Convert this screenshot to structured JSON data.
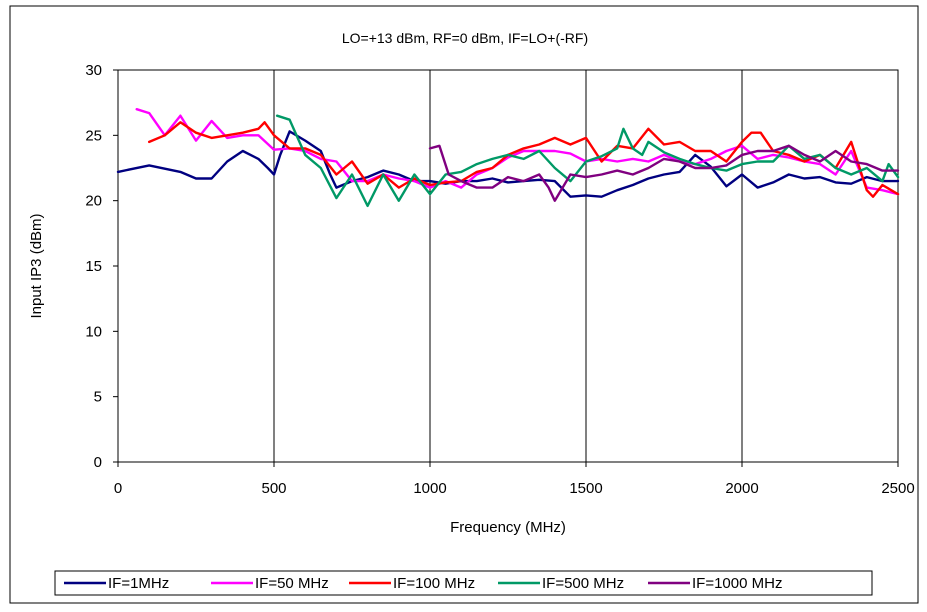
{
  "chart_data": {
    "type": "line",
    "title": "LO=+13 dBm, RF=0 dBm, IF=LO+(-RF)",
    "xlabel": "Frequency (MHz)",
    "ylabel": "Input IP3 (dBm)",
    "xlim": [
      0,
      2500
    ],
    "ylim": [
      0,
      30
    ],
    "xticks": [
      0,
      500,
      1000,
      1500,
      2000,
      2500
    ],
    "yticks": [
      0,
      5,
      10,
      15,
      20,
      25,
      30
    ],
    "xtick_labels": [
      "0",
      "500",
      "1000",
      "1500",
      "2000",
      "2500"
    ],
    "ytick_labels": [
      "0",
      "5",
      "10",
      "15",
      "20",
      "25",
      "30"
    ],
    "grid": "vertical",
    "legend_position": "bottom",
    "series": [
      {
        "name": "IF=1MHz",
        "color": "#000080",
        "points": [
          [
            0,
            22.2
          ],
          [
            100,
            22.7
          ],
          [
            200,
            22.2
          ],
          [
            250,
            21.7
          ],
          [
            300,
            21.7
          ],
          [
            350,
            23.0
          ],
          [
            400,
            23.8
          ],
          [
            450,
            23.2
          ],
          [
            480,
            22.5
          ],
          [
            500,
            22.0
          ],
          [
            520,
            23.5
          ],
          [
            550,
            25.3
          ],
          [
            600,
            24.6
          ],
          [
            650,
            23.8
          ],
          [
            680,
            22.0
          ],
          [
            700,
            21.0
          ],
          [
            750,
            21.5
          ],
          [
            800,
            21.8
          ],
          [
            850,
            22.3
          ],
          [
            900,
            22.0
          ],
          [
            950,
            21.5
          ],
          [
            1000,
            21.5
          ],
          [
            1050,
            21.3
          ],
          [
            1100,
            21.5
          ],
          [
            1150,
            21.5
          ],
          [
            1200,
            21.7
          ],
          [
            1250,
            21.4
          ],
          [
            1300,
            21.5
          ],
          [
            1350,
            21.6
          ],
          [
            1400,
            21.5
          ],
          [
            1450,
            20.3
          ],
          [
            1500,
            20.4
          ],
          [
            1550,
            20.3
          ],
          [
            1600,
            20.8
          ],
          [
            1650,
            21.2
          ],
          [
            1700,
            21.7
          ],
          [
            1750,
            22.0
          ],
          [
            1800,
            22.2
          ],
          [
            1850,
            23.5
          ],
          [
            1900,
            22.6
          ],
          [
            1950,
            21.1
          ],
          [
            2000,
            22.0
          ],
          [
            2050,
            21.0
          ],
          [
            2100,
            21.4
          ],
          [
            2150,
            22.0
          ],
          [
            2200,
            21.7
          ],
          [
            2250,
            21.8
          ],
          [
            2300,
            21.4
          ],
          [
            2350,
            21.3
          ],
          [
            2400,
            21.8
          ],
          [
            2450,
            21.5
          ],
          [
            2500,
            21.5
          ]
        ]
      },
      {
        "name": "IF=50 MHz",
        "color": "#ff00ff",
        "points": [
          [
            60,
            27.0
          ],
          [
            100,
            26.7
          ],
          [
            150,
            25.0
          ],
          [
            200,
            26.5
          ],
          [
            250,
            24.6
          ],
          [
            300,
            26.1
          ],
          [
            350,
            24.8
          ],
          [
            400,
            25.0
          ],
          [
            450,
            25.0
          ],
          [
            500,
            23.9
          ],
          [
            550,
            24.0
          ],
          [
            600,
            23.8
          ],
          [
            650,
            23.2
          ],
          [
            700,
            23.0
          ],
          [
            750,
            21.5
          ],
          [
            800,
            21.5
          ],
          [
            850,
            22.0
          ],
          [
            900,
            21.7
          ],
          [
            950,
            21.5
          ],
          [
            1000,
            21.0
          ],
          [
            1050,
            21.5
          ],
          [
            1100,
            21.0
          ],
          [
            1150,
            22.0
          ],
          [
            1200,
            22.5
          ],
          [
            1250,
            23.3
          ],
          [
            1300,
            23.8
          ],
          [
            1350,
            23.8
          ],
          [
            1400,
            23.8
          ],
          [
            1450,
            23.6
          ],
          [
            1500,
            23.0
          ],
          [
            1550,
            23.2
          ],
          [
            1600,
            23.0
          ],
          [
            1650,
            23.2
          ],
          [
            1700,
            23.0
          ],
          [
            1750,
            23.5
          ],
          [
            1800,
            23.0
          ],
          [
            1850,
            22.8
          ],
          [
            1900,
            23.2
          ],
          [
            1950,
            23.8
          ],
          [
            2000,
            24.2
          ],
          [
            2050,
            23.2
          ],
          [
            2100,
            23.5
          ],
          [
            2150,
            23.3
          ],
          [
            2200,
            23.0
          ],
          [
            2250,
            22.8
          ],
          [
            2300,
            22.0
          ],
          [
            2350,
            23.8
          ],
          [
            2400,
            21.0
          ],
          [
            2450,
            20.8
          ],
          [
            2500,
            20.5
          ]
        ]
      },
      {
        "name": "IF=100 MHz",
        "color": "#ff0000",
        "points": [
          [
            100,
            24.5
          ],
          [
            150,
            25.0
          ],
          [
            200,
            26.0
          ],
          [
            250,
            25.2
          ],
          [
            300,
            24.8
          ],
          [
            350,
            25.0
          ],
          [
            400,
            25.2
          ],
          [
            450,
            25.5
          ],
          [
            470,
            26.0
          ],
          [
            500,
            25.0
          ],
          [
            550,
            24.0
          ],
          [
            600,
            24.0
          ],
          [
            650,
            23.5
          ],
          [
            700,
            22.0
          ],
          [
            750,
            23.0
          ],
          [
            800,
            21.3
          ],
          [
            850,
            22.0
          ],
          [
            900,
            21.0
          ],
          [
            950,
            21.7
          ],
          [
            1000,
            21.2
          ],
          [
            1050,
            21.4
          ],
          [
            1100,
            21.5
          ],
          [
            1150,
            22.2
          ],
          [
            1200,
            22.5
          ],
          [
            1250,
            23.5
          ],
          [
            1300,
            24.0
          ],
          [
            1350,
            24.3
          ],
          [
            1400,
            24.8
          ],
          [
            1450,
            24.3
          ],
          [
            1500,
            24.8
          ],
          [
            1550,
            23.0
          ],
          [
            1600,
            24.2
          ],
          [
            1650,
            24.0
          ],
          [
            1700,
            25.5
          ],
          [
            1750,
            24.3
          ],
          [
            1800,
            24.5
          ],
          [
            1850,
            23.8
          ],
          [
            1900,
            23.8
          ],
          [
            1950,
            23.0
          ],
          [
            2000,
            24.5
          ],
          [
            2030,
            25.2
          ],
          [
            2060,
            25.2
          ],
          [
            2100,
            23.8
          ],
          [
            2150,
            23.5
          ],
          [
            2200,
            23.0
          ],
          [
            2250,
            23.5
          ],
          [
            2300,
            22.5
          ],
          [
            2350,
            24.5
          ],
          [
            2400,
            20.8
          ],
          [
            2420,
            20.3
          ],
          [
            2450,
            21.2
          ],
          [
            2500,
            20.5
          ]
        ]
      },
      {
        "name": "IF=500 MHz",
        "color": "#009966",
        "points": [
          [
            510,
            26.5
          ],
          [
            550,
            26.2
          ],
          [
            600,
            23.5
          ],
          [
            650,
            22.5
          ],
          [
            700,
            20.2
          ],
          [
            750,
            22.0
          ],
          [
            800,
            19.6
          ],
          [
            850,
            22.0
          ],
          [
            900,
            20.0
          ],
          [
            950,
            22.0
          ],
          [
            1000,
            20.5
          ],
          [
            1050,
            22.0
          ],
          [
            1100,
            22.2
          ],
          [
            1150,
            22.8
          ],
          [
            1200,
            23.2
          ],
          [
            1250,
            23.5
          ],
          [
            1300,
            23.2
          ],
          [
            1350,
            23.8
          ],
          [
            1400,
            22.5
          ],
          [
            1450,
            21.5
          ],
          [
            1500,
            23.0
          ],
          [
            1550,
            23.4
          ],
          [
            1600,
            24.0
          ],
          [
            1620,
            25.5
          ],
          [
            1650,
            24.0
          ],
          [
            1680,
            23.5
          ],
          [
            1700,
            24.5
          ],
          [
            1750,
            23.7
          ],
          [
            1800,
            23.2
          ],
          [
            1850,
            22.8
          ],
          [
            1900,
            22.5
          ],
          [
            1950,
            22.3
          ],
          [
            2000,
            22.8
          ],
          [
            2050,
            23.0
          ],
          [
            2100,
            23.0
          ],
          [
            2150,
            24.2
          ],
          [
            2200,
            23.2
          ],
          [
            2250,
            23.5
          ],
          [
            2300,
            22.5
          ],
          [
            2350,
            22.0
          ],
          [
            2400,
            22.5
          ],
          [
            2450,
            21.5
          ],
          [
            2470,
            22.8
          ],
          [
            2500,
            21.8
          ]
        ]
      },
      {
        "name": "IF=1000 MHz",
        "color": "#800080",
        "points": [
          [
            1000,
            24.0
          ],
          [
            1030,
            24.2
          ],
          [
            1060,
            22.0
          ],
          [
            1100,
            21.5
          ],
          [
            1150,
            21.0
          ],
          [
            1200,
            21.0
          ],
          [
            1250,
            21.8
          ],
          [
            1300,
            21.5
          ],
          [
            1350,
            22.0
          ],
          [
            1380,
            21.0
          ],
          [
            1400,
            20.0
          ],
          [
            1450,
            22.0
          ],
          [
            1500,
            21.8
          ],
          [
            1550,
            22.0
          ],
          [
            1600,
            22.3
          ],
          [
            1650,
            22.0
          ],
          [
            1700,
            22.5
          ],
          [
            1750,
            23.2
          ],
          [
            1800,
            23.0
          ],
          [
            1850,
            22.5
          ],
          [
            1900,
            22.5
          ],
          [
            1950,
            22.7
          ],
          [
            2000,
            23.5
          ],
          [
            2050,
            23.8
          ],
          [
            2100,
            23.8
          ],
          [
            2150,
            24.2
          ],
          [
            2200,
            23.5
          ],
          [
            2250,
            23.0
          ],
          [
            2300,
            23.8
          ],
          [
            2350,
            23.0
          ],
          [
            2400,
            22.8
          ],
          [
            2450,
            22.3
          ],
          [
            2500,
            22.3
          ]
        ]
      }
    ]
  }
}
